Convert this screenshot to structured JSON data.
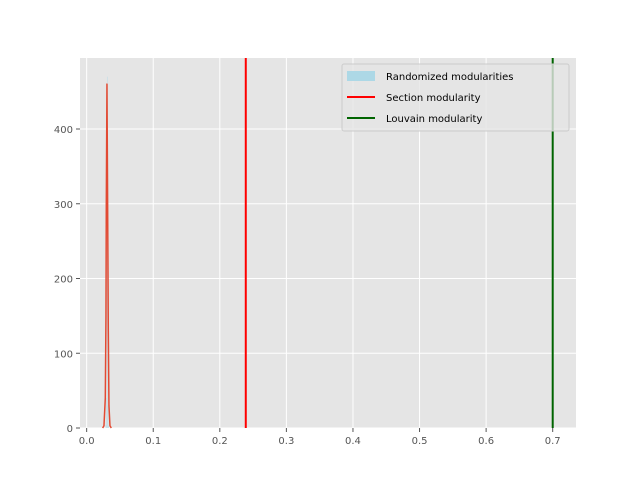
{
  "chart_data": {
    "type": "histogram",
    "title": "",
    "xlabel": "",
    "ylabel": "",
    "xlim": [
      -0.01,
      0.735
    ],
    "ylim": [
      0,
      495
    ],
    "grid": true,
    "legend_position": "top-right",
    "x_ticks": [
      {
        "value": 0.0,
        "label": "0.0"
      },
      {
        "value": 0.1,
        "label": "0.1"
      },
      {
        "value": 0.2,
        "label": "0.2"
      },
      {
        "value": 0.3,
        "label": "0.3"
      },
      {
        "value": 0.4,
        "label": "0.4"
      },
      {
        "value": 0.5,
        "label": "0.5"
      },
      {
        "value": 0.6,
        "label": "0.6"
      },
      {
        "value": 0.7,
        "label": "0.7"
      }
    ],
    "y_ticks": [
      {
        "value": 0,
        "label": "0"
      },
      {
        "value": 100,
        "label": "100"
      },
      {
        "value": 200,
        "label": "200"
      },
      {
        "value": 300,
        "label": "300"
      },
      {
        "value": 400,
        "label": "400"
      }
    ],
    "histogram": {
      "name": "Randomized modularities",
      "color": "#add8e6",
      "bins": [
        {
          "x0": 0.0285,
          "x1": 0.0295,
          "count": 4
        },
        {
          "x0": 0.0295,
          "x1": 0.0305,
          "count": 40
        },
        {
          "x0": 0.0305,
          "x1": 0.0315,
          "count": 470
        },
        {
          "x0": 0.0315,
          "x1": 0.0325,
          "count": 30
        },
        {
          "x0": 0.0325,
          "x1": 0.0335,
          "count": 3
        }
      ]
    },
    "kde": {
      "color": "#e24a33",
      "points": [
        [
          0.024,
          0
        ],
        [
          0.026,
          3
        ],
        [
          0.028,
          40
        ],
        [
          0.029,
          150
        ],
        [
          0.0295,
          300
        ],
        [
          0.0305,
          460
        ],
        [
          0.0315,
          300
        ],
        [
          0.0325,
          130
        ],
        [
          0.0335,
          30
        ],
        [
          0.035,
          3
        ],
        [
          0.037,
          0
        ]
      ]
    },
    "vlines": [
      {
        "name": "Section modularity",
        "x": 0.239,
        "color": "#ff0000"
      },
      {
        "name": "Louvain modularity",
        "x": 0.7,
        "color": "#006400"
      }
    ]
  }
}
